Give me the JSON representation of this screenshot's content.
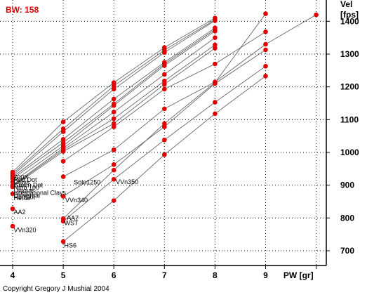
{
  "annotation": "BW: 158",
  "copyright": "Copyright Gregory J Mushial 2004",
  "colors": {
    "point": "#e00000",
    "line": "#555555",
    "axis": "#000000",
    "grid": "#000000",
    "bw": "#e00000"
  },
  "chart_data": {
    "type": "line",
    "title": "",
    "xlabel": "PW [gr]",
    "ylabel_lines": [
      "Vel",
      "[fps]"
    ],
    "xlim": [
      3.75,
      10.2
    ],
    "ylim": [
      655,
      1465
    ],
    "x_ticks": [
      4,
      5,
      6,
      7,
      8,
      9
    ],
    "x_tick_labels": [
      "4",
      "5",
      "6",
      "7",
      "8",
      "9"
    ],
    "y_ticks": [
      700,
      800,
      900,
      1000,
      1100,
      1200,
      1300,
      1400
    ],
    "y_tick_labels": [
      "700",
      "800",
      "900",
      "1000",
      "1100",
      "1200",
      "1300",
      "1400"
    ],
    "grid": "dotted",
    "series": [
      {
        "name": "700X",
        "x": [
          4,
          5,
          6,
          7,
          8
        ],
        "y": [
          940,
          1093,
          1213,
          1320,
          1410
        ]
      },
      {
        "name": "Red Dot",
        "x": [
          4,
          5,
          6,
          7,
          8
        ],
        "y": [
          935,
          1072,
          1203,
          1312,
          1405
        ]
      },
      {
        "name": "Clays",
        "x": [
          4,
          5,
          6,
          7,
          8
        ],
        "y": [
          930,
          1063,
          1193,
          1305,
          1402
        ]
      },
      {
        "name": "Green Dot",
        "x": [
          4,
          5,
          6,
          7,
          8
        ],
        "y": [
          925,
          1040,
          1163,
          1275,
          1380
        ]
      },
      {
        "name": "Nitro 100",
        "x": [
          4,
          5,
          6,
          7,
          8
        ],
        "y": [
          920,
          1030,
          1148,
          1270,
          1375
        ]
      },
      {
        "name": "Unique",
        "x": [
          4,
          5,
          6,
          7,
          8
        ],
        "y": [
          910,
          1020,
          1143,
          1265,
          1370
        ]
      },
      {
        "name": "International Clays",
        "x": [
          4,
          5,
          6,
          7,
          8
        ],
        "y": [
          900,
          1013,
          1123,
          1238,
          1350
        ]
      },
      {
        "name": "Universal",
        "x": [
          4,
          5,
          6,
          7,
          8
        ],
        "y": [
          898,
          1008,
          1103,
          1218,
          1328
        ]
      },
      {
        "name": "Herco",
        "x": [
          4,
          5,
          6,
          7,
          8
        ],
        "y": [
          895,
          1003,
          1088,
          1208,
          1318
        ]
      },
      {
        "name": "Solo1250",
        "x": [
          5,
          6,
          7,
          8,
          9
        ],
        "y": [
          973,
          1078,
          1193,
          1270,
          1368
        ]
      },
      {
        "name": "VVn350",
        "x": [
          5,
          6,
          7,
          8,
          9,
          10
        ],
        "y": [
          926,
          1008,
          1133,
          1215,
          1330,
          1420
        ]
      },
      {
        "name": "VVn340",
        "x": [
          5,
          6,
          7,
          8,
          9
        ],
        "y": [
          866,
          963,
          1078,
          1210,
          1313
        ]
      },
      {
        "name": "AA7",
        "x": [
          5,
          6,
          7,
          8,
          9
        ],
        "y": [
          798,
          946,
          1088,
          1213,
          1423
        ]
      },
      {
        "name": "WST",
        "x": [
          5,
          6,
          7,
          8,
          9
        ],
        "y": [
          790,
          918,
          1038,
          1153,
          1263
        ]
      },
      {
        "name": "HS6",
        "x": [
          5,
          6,
          7,
          8,
          9
        ],
        "y": [
          728,
          853,
          993,
          1118,
          1233
        ]
      }
    ],
    "solo_points": [
      {
        "x": 4,
        "y": 874
      },
      {
        "x": 4,
        "y": 828
      },
      {
        "x": 4,
        "y": 775
      }
    ],
    "labels": [
      {
        "text": "700X",
        "x": 4.02,
        "y": 918
      },
      {
        "text": "Red Dot",
        "x": 4.02,
        "y": 910
      },
      {
        "text": "Clays",
        "x": 4.02,
        "y": 902
      },
      {
        "text": "Green Dot",
        "x": 4.02,
        "y": 894
      },
      {
        "text": "Nitro 100",
        "x": 4.02,
        "y": 886
      },
      {
        "text": "Unique",
        "x": 4.02,
        "y": 878
      },
      {
        "text": "International Clays",
        "x": 4.02,
        "y": 870
      },
      {
        "text": "Universal",
        "x": 4.02,
        "y": 862
      },
      {
        "text": "Herco",
        "x": 4.02,
        "y": 854
      },
      {
        "text": "RedDot",
        "x": 4.02,
        "y": 857
      },
      {
        "text": "AA2",
        "x": 4.02,
        "y": 811
      },
      {
        "text": "VVn320",
        "x": 4.02,
        "y": 757
      },
      {
        "text": "Solo1250",
        "x": 5.21,
        "y": 902
      },
      {
        "text": "VVn350",
        "x": 6.04,
        "y": 904
      },
      {
        "text": "VVn340",
        "x": 5.04,
        "y": 848
      },
      {
        "text": "AA7",
        "x": 5.07,
        "y": 793
      },
      {
        "text": "WST",
        "x": 5.02,
        "y": 778
      },
      {
        "text": "HS6",
        "x": 5.02,
        "y": 710
      }
    ]
  }
}
